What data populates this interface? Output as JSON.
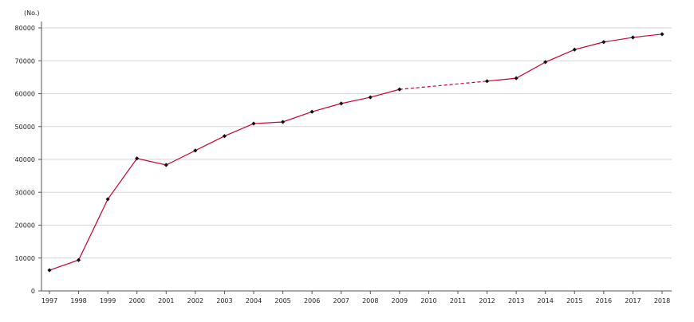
{
  "chart_data": {
    "type": "line",
    "title": "",
    "xlabel": "",
    "ylabel": "(No.)",
    "ylim": [
      0,
      80000
    ],
    "yticks": [
      0,
      10000,
      20000,
      30000,
      40000,
      50000,
      60000,
      70000,
      80000
    ],
    "grid": true,
    "legend": "none",
    "categories": [
      "1997",
      "1998",
      "1999",
      "2000",
      "2001",
      "2002",
      "2003",
      "2004",
      "2005",
      "2006",
      "2007",
      "2008",
      "2009",
      "2010",
      "2011",
      "2012",
      "2013",
      "2014",
      "2015",
      "2016",
      "2017",
      "2018"
    ],
    "series": [
      {
        "values": [
          6300,
          9400,
          27900,
          40300,
          38300,
          42700,
          47100,
          50900,
          51400,
          54500,
          57000,
          58900,
          61300,
          null,
          null,
          63800,
          64700,
          69600,
          73400,
          75700,
          77100,
          78100
        ],
        "color": "#c8002d",
        "marker_color": "#111111",
        "dashed_gap": true
      }
    ]
  },
  "colors": {
    "line": "#c8002d",
    "marker": "#111111",
    "grid": "#d6d6d6",
    "axis": "#555555"
  }
}
